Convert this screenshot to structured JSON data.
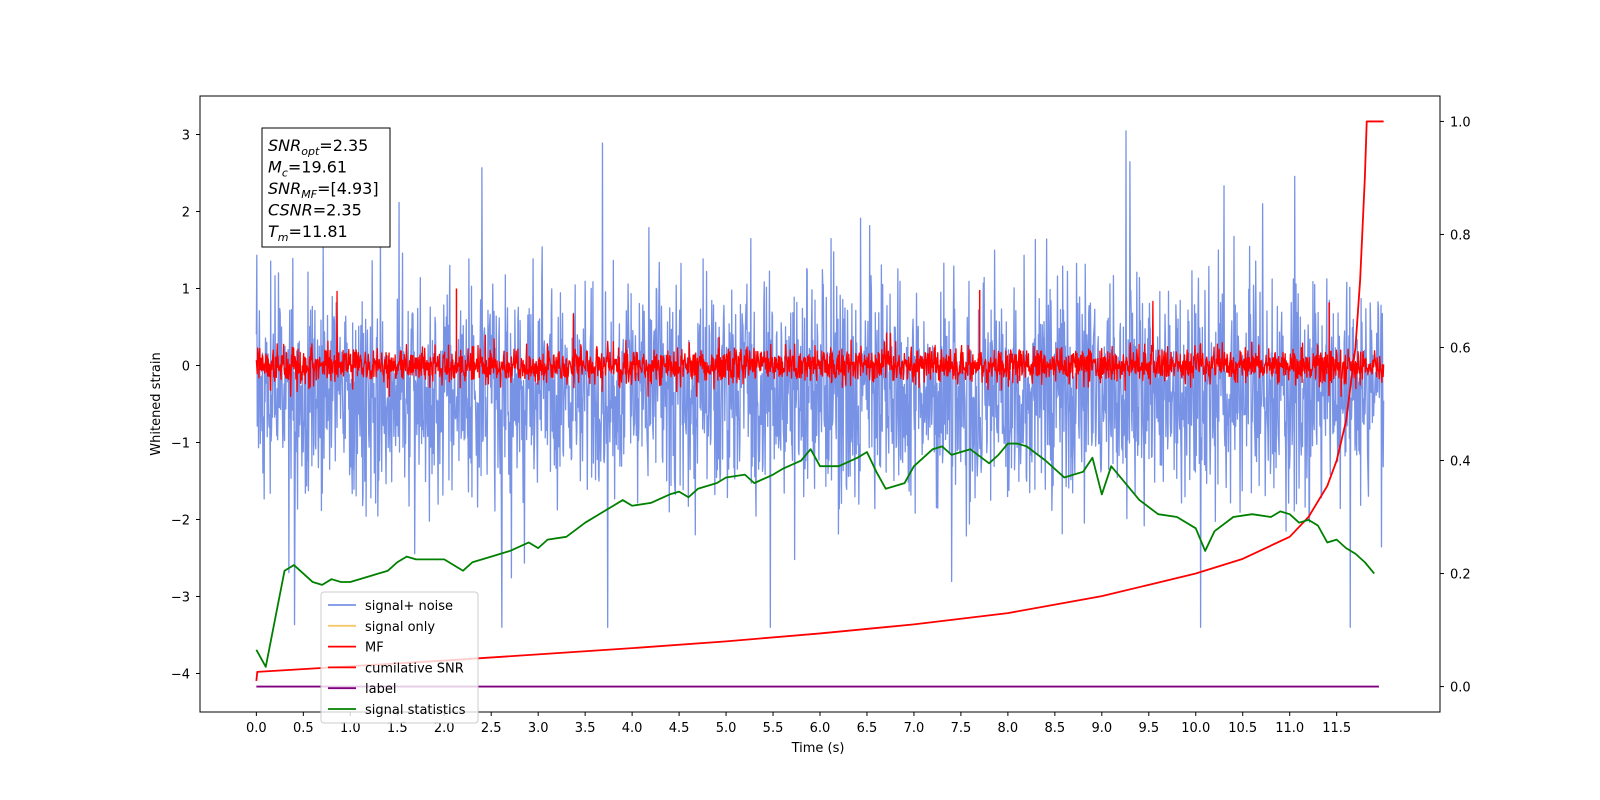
{
  "chart_data": {
    "type": "line",
    "xlabel": "Time (s)",
    "ylabel": "Whitened strain",
    "xlim": [
      -0.6,
      12.6
    ],
    "ylim": [
      -4.5,
      3.5
    ],
    "y2lim": [
      -0.045,
      1.045
    ],
    "x_ticks": [
      "0.0",
      "0.5",
      "1.0",
      "1.5",
      "2.0",
      "2.5",
      "3.0",
      "3.5",
      "4.0",
      "4.5",
      "5.0",
      "5.5",
      "6.0",
      "6.5",
      "7.0",
      "7.5",
      "8.0",
      "8.5",
      "9.0",
      "9.5",
      "10.0",
      "10.5",
      "11.0",
      "11.5"
    ],
    "y_ticks": [
      "3",
      "2",
      "1",
      "0",
      "−1",
      "−2",
      "−3",
      "−4"
    ],
    "y2_ticks": [
      "1.0",
      "0.8",
      "0.6",
      "0.4",
      "0.2",
      "0.0"
    ],
    "grid": false,
    "legend_position": "lower-left",
    "annotation": {
      "lines": [
        {
          "sym": "SNR",
          "sub": "opt",
          "text": "=2.35"
        },
        {
          "sym": "M",
          "sub": "c",
          "text": "=19.61"
        },
        {
          "sym": "SNR",
          "sub": "MF",
          "text": "=[4.93]"
        },
        {
          "sym": "CSNR",
          "sub": "",
          "text": "=2.35"
        },
        {
          "sym": "T",
          "sub": "m",
          "text": "=11.81"
        }
      ]
    },
    "series": [
      {
        "name": "signal+ noise",
        "color": "#7893e6",
        "axis": "left",
        "kind": "noise",
        "x_range": [
          0.0,
          12.0
        ],
        "center": -0.35,
        "typical_range": [
          -1.8,
          1.8
        ],
        "extreme_range": [
          -3.4,
          3.2
        ]
      },
      {
        "name": "signal only",
        "color": "#f5c96a",
        "axis": "left",
        "kind": "hidden",
        "values": []
      },
      {
        "name": "MF",
        "color": "#ff0000",
        "axis": "left",
        "kind": "noise",
        "x_range": [
          0.0,
          12.0
        ],
        "center": 0.0,
        "typical_range": [
          -0.3,
          0.3
        ],
        "extreme_range": [
          -0.4,
          1.0
        ],
        "spikes": [
          {
            "x": 2.13,
            "y": 1.0
          },
          {
            "x": 7.7,
            "y": 0.98
          },
          {
            "x": 11.42,
            "y": 0.82
          }
        ]
      },
      {
        "name": "cumilative SNR",
        "color": "#ff0000",
        "axis": "right",
        "kind": "line",
        "x": [
          0.0,
          0.01,
          1.0,
          2.0,
          3.0,
          4.0,
          5.0,
          6.0,
          7.0,
          8.0,
          8.5,
          9.0,
          9.5,
          10.0,
          10.5,
          11.0,
          11.2,
          11.4,
          11.5,
          11.6,
          11.7,
          11.75,
          11.8,
          11.82,
          11.85,
          11.9,
          12.0
        ],
        "values": [
          0.01,
          0.026,
          0.036,
          0.046,
          0.057,
          0.068,
          0.08,
          0.094,
          0.11,
          0.13,
          0.145,
          0.16,
          0.18,
          0.2,
          0.226,
          0.265,
          0.3,
          0.355,
          0.4,
          0.47,
          0.6,
          0.72,
          0.9,
          1.0,
          1.0,
          1.0,
          1.0
        ]
      },
      {
        "name": "label",
        "color": "#800080",
        "axis": "right",
        "kind": "line",
        "x": [
          0.0,
          11.95
        ],
        "values": [
          0.0,
          0.0
        ]
      },
      {
        "name": "signal statistics",
        "color": "#008000",
        "axis": "right",
        "kind": "line",
        "x": [
          0.0,
          0.1,
          0.2,
          0.3,
          0.4,
          0.5,
          0.6,
          0.7,
          0.8,
          0.9,
          1.0,
          1.2,
          1.4,
          1.5,
          1.6,
          1.7,
          1.8,
          2.0,
          2.2,
          2.3,
          2.5,
          2.7,
          2.9,
          3.0,
          3.1,
          3.3,
          3.5,
          3.7,
          3.8,
          3.9,
          4.0,
          4.2,
          4.4,
          4.5,
          4.6,
          4.7,
          4.9,
          5.0,
          5.2,
          5.3,
          5.5,
          5.6,
          5.8,
          5.9,
          6.0,
          6.2,
          6.4,
          6.5,
          6.6,
          6.7,
          6.9,
          7.0,
          7.2,
          7.3,
          7.4,
          7.6,
          7.8,
          7.9,
          8.0,
          8.1,
          8.2,
          8.4,
          8.6,
          8.7,
          8.8,
          8.9,
          9.0,
          9.1,
          9.2,
          9.4,
          9.6,
          9.8,
          10.0,
          10.1,
          10.2,
          10.4,
          10.6,
          10.8,
          10.9,
          11.0,
          11.1,
          11.2,
          11.3,
          11.4,
          11.5,
          11.6,
          11.7,
          11.8,
          11.9
        ],
        "values": [
          0.065,
          0.035,
          0.12,
          0.205,
          0.215,
          0.2,
          0.185,
          0.18,
          0.19,
          0.185,
          0.185,
          0.195,
          0.205,
          0.22,
          0.23,
          0.225,
          0.225,
          0.225,
          0.205,
          0.22,
          0.23,
          0.24,
          0.255,
          0.245,
          0.26,
          0.265,
          0.29,
          0.31,
          0.32,
          0.33,
          0.32,
          0.325,
          0.34,
          0.345,
          0.335,
          0.35,
          0.36,
          0.37,
          0.375,
          0.36,
          0.375,
          0.385,
          0.4,
          0.42,
          0.39,
          0.39,
          0.405,
          0.415,
          0.38,
          0.35,
          0.36,
          0.39,
          0.42,
          0.425,
          0.41,
          0.42,
          0.395,
          0.41,
          0.43,
          0.43,
          0.425,
          0.4,
          0.37,
          0.375,
          0.38,
          0.405,
          0.34,
          0.39,
          0.37,
          0.33,
          0.305,
          0.3,
          0.28,
          0.24,
          0.275,
          0.3,
          0.305,
          0.3,
          0.31,
          0.305,
          0.29,
          0.295,
          0.285,
          0.255,
          0.26,
          0.245,
          0.235,
          0.22,
          0.2
        ]
      }
    ]
  }
}
